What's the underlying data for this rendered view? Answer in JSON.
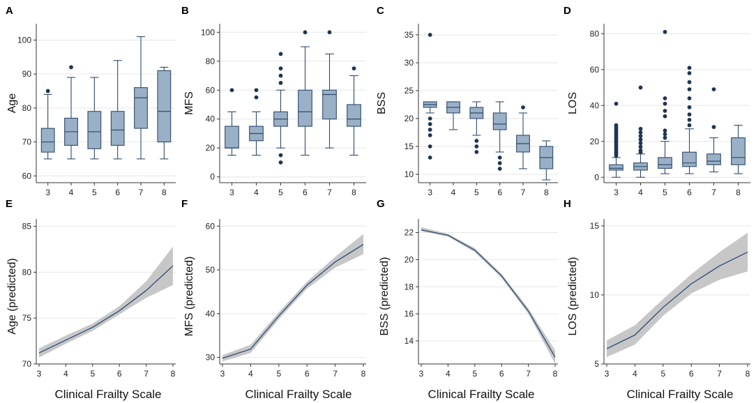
{
  "chart_data": [
    {
      "panel": "A",
      "type": "box",
      "ylabel": "Age",
      "xlabel": "",
      "ylim": [
        58,
        104
      ],
      "yticks": [
        60,
        70,
        80,
        90,
        100
      ],
      "categories": [
        "3",
        "4",
        "5",
        "6",
        "7",
        "8"
      ],
      "boxes": [
        {
          "min": 65,
          "q1": 67,
          "median": 70,
          "q3": 74,
          "max": 84,
          "outliers": [
            85
          ]
        },
        {
          "min": 65,
          "q1": 69,
          "median": 73,
          "q3": 77,
          "max": 89,
          "outliers": [
            92
          ]
        },
        {
          "min": 65,
          "q1": 68,
          "median": 73,
          "q3": 79,
          "max": 89,
          "outliers": []
        },
        {
          "min": 65,
          "q1": 69,
          "median": 73.5,
          "q3": 79,
          "max": 94,
          "outliers": []
        },
        {
          "min": 65,
          "q1": 74,
          "median": 83,
          "q3": 86,
          "max": 101,
          "outliers": []
        },
        {
          "min": 65,
          "q1": 70,
          "median": 79,
          "q3": 91,
          "max": 92,
          "outliers": []
        }
      ]
    },
    {
      "panel": "B",
      "type": "box",
      "ylabel": "MFS",
      "xlabel": "",
      "ylim": [
        -4,
        104
      ],
      "yticks": [
        0,
        20,
        40,
        60,
        80,
        100
      ],
      "categories": [
        "3",
        "4",
        "5",
        "6",
        "7",
        "8"
      ],
      "boxes": [
        {
          "min": 15,
          "q1": 20,
          "median": 20,
          "q3": 35,
          "max": 45,
          "outliers": [
            60
          ]
        },
        {
          "min": 15,
          "q1": 25,
          "median": 30,
          "q3": 35,
          "max": 45,
          "outliers": [
            55,
            60
          ]
        },
        {
          "min": 20,
          "q1": 35,
          "median": 40,
          "q3": 45,
          "max": 60,
          "outliers": [
            10,
            15,
            65,
            70,
            75,
            85
          ]
        },
        {
          "min": 15,
          "q1": 35,
          "median": 45,
          "q3": 60,
          "max": 90,
          "outliers": [
            100
          ]
        },
        {
          "min": 20,
          "q1": 40,
          "median": 57,
          "q3": 60,
          "max": 85,
          "outliers": [
            100
          ]
        },
        {
          "min": 15,
          "q1": 35,
          "median": 40,
          "q3": 50,
          "max": 70,
          "outliers": [
            75
          ]
        }
      ]
    },
    {
      "panel": "C",
      "type": "box",
      "ylabel": "BSS",
      "xlabel": "",
      "ylim": [
        8.5,
        36.5
      ],
      "yticks": [
        10,
        15,
        20,
        25,
        30,
        35
      ],
      "categories": [
        "3",
        "4",
        "5",
        "6",
        "7",
        "8"
      ],
      "boxes": [
        {
          "min": 21,
          "q1": 22,
          "median": 22.5,
          "q3": 23,
          "max": 23,
          "outliers": [
            13,
            15,
            17,
            18,
            19,
            20,
            35
          ]
        },
        {
          "min": 18,
          "q1": 21,
          "median": 22,
          "q3": 23,
          "max": 23,
          "outliers": []
        },
        {
          "min": 17,
          "q1": 20,
          "median": 21,
          "q3": 22,
          "max": 23,
          "outliers": [
            14,
            15,
            16
          ]
        },
        {
          "min": 14,
          "q1": 18,
          "median": 19,
          "q3": 21,
          "max": 23,
          "outliers": [
            11,
            12,
            13
          ]
        },
        {
          "min": 11,
          "q1": 14,
          "median": 15.5,
          "q3": 17,
          "max": 21,
          "outliers": [
            22
          ]
        },
        {
          "min": 9,
          "q1": 11,
          "median": 13,
          "q3": 15,
          "max": 16,
          "outliers": []
        }
      ]
    },
    {
      "panel": "D",
      "type": "box",
      "ylabel": "LOS",
      "xlabel": "",
      "ylim": [
        -3,
        84
      ],
      "yticks": [
        0,
        20,
        40,
        60,
        80
      ],
      "categories": [
        "3",
        "4",
        "5",
        "6",
        "7",
        "8"
      ],
      "boxes": [
        {
          "min": 0,
          "q1": 4,
          "median": 5,
          "q3": 7,
          "max": 11,
          "outliers": [
            12,
            13,
            14,
            15,
            16,
            17,
            18,
            19,
            20,
            21,
            22,
            23,
            24,
            25,
            26,
            27,
            28,
            29,
            41
          ]
        },
        {
          "min": 0,
          "q1": 4,
          "median": 6,
          "q3": 8,
          "max": 13,
          "outliers": [
            14,
            15,
            17,
            19,
            21,
            23,
            25,
            27,
            50
          ]
        },
        {
          "min": 2,
          "q1": 5,
          "median": 7,
          "q3": 11,
          "max": 20,
          "outliers": [
            22,
            24,
            26,
            34,
            37,
            41,
            44,
            81
          ]
        },
        {
          "min": 2,
          "q1": 6,
          "median": 8,
          "q3": 14,
          "max": 27,
          "outliers": [
            29,
            32,
            35,
            39,
            44,
            49,
            53,
            58,
            61
          ]
        },
        {
          "min": 3,
          "q1": 7,
          "median": 9,
          "q3": 13,
          "max": 22,
          "outliers": [
            28,
            49
          ]
        },
        {
          "min": 2,
          "q1": 7,
          "median": 11,
          "q3": 22,
          "max": 29,
          "outliers": []
        }
      ]
    },
    {
      "panel": "E",
      "type": "line",
      "ylabel": "Age (predicted)",
      "xlabel": "Clinical Frailty Scale",
      "ylim": [
        70,
        85.5
      ],
      "yticks": [
        70,
        75,
        80,
        85
      ],
      "x": [
        3,
        4,
        5,
        6,
        7,
        8
      ],
      "series": [
        {
          "name": "predicted",
          "values": [
            71.2,
            72.6,
            74.0,
            75.8,
            78.0,
            80.7
          ],
          "lower": [
            70.7,
            72.2,
            73.6,
            75.4,
            77.2,
            78.6
          ],
          "upper": [
            71.7,
            73.1,
            74.4,
            76.3,
            79.0,
            82.8
          ]
        }
      ]
    },
    {
      "panel": "F",
      "type": "line",
      "ylabel": "MFS (predicted)",
      "xlabel": "Clinical Frailty Scale",
      "ylim": [
        28.5,
        61
      ],
      "yticks": [
        30,
        40,
        50,
        60
      ],
      "x": [
        3,
        4,
        5,
        6,
        7,
        8
      ],
      "series": [
        {
          "name": "predicted",
          "values": [
            29.8,
            31.9,
            39.5,
            46.5,
            51.8,
            55.8
          ],
          "lower": [
            29.1,
            31.0,
            38.7,
            45.7,
            50.5,
            53.6
          ],
          "upper": [
            30.5,
            32.9,
            40.3,
            47.3,
            53.0,
            58.2
          ]
        }
      ]
    },
    {
      "panel": "G",
      "type": "line",
      "ylabel": "BSS (predicted)",
      "xlabel": "Clinical Frailty Scale",
      "ylim": [
        12.3,
        22.8
      ],
      "yticks": [
        14,
        16,
        18,
        20,
        22
      ],
      "x": [
        3,
        4,
        5,
        6,
        7,
        8
      ],
      "series": [
        {
          "name": "predicted",
          "values": [
            22.2,
            21.8,
            20.7,
            18.8,
            16.2,
            12.8
          ],
          "lower": [
            22.1,
            21.7,
            20.55,
            18.65,
            16.0,
            12.3
          ],
          "upper": [
            22.4,
            21.9,
            20.85,
            18.95,
            16.4,
            13.3
          ]
        }
      ]
    },
    {
      "panel": "H",
      "type": "line",
      "ylabel": "LOS (predicted)",
      "xlabel": "Clinical Frailty Scale",
      "ylim": [
        5,
        15.3
      ],
      "yticks": [
        5,
        10,
        15
      ],
      "x": [
        3,
        4,
        5,
        6,
        7,
        8
      ],
      "series": [
        {
          "name": "predicted",
          "values": [
            6.1,
            7.1,
            9.1,
            10.8,
            12.1,
            13.1
          ],
          "lower": [
            5.5,
            6.4,
            8.5,
            10.1,
            11.1,
            11.7
          ],
          "upper": [
            6.7,
            7.8,
            9.7,
            11.5,
            13.1,
            14.5
          ]
        }
      ]
    }
  ]
}
